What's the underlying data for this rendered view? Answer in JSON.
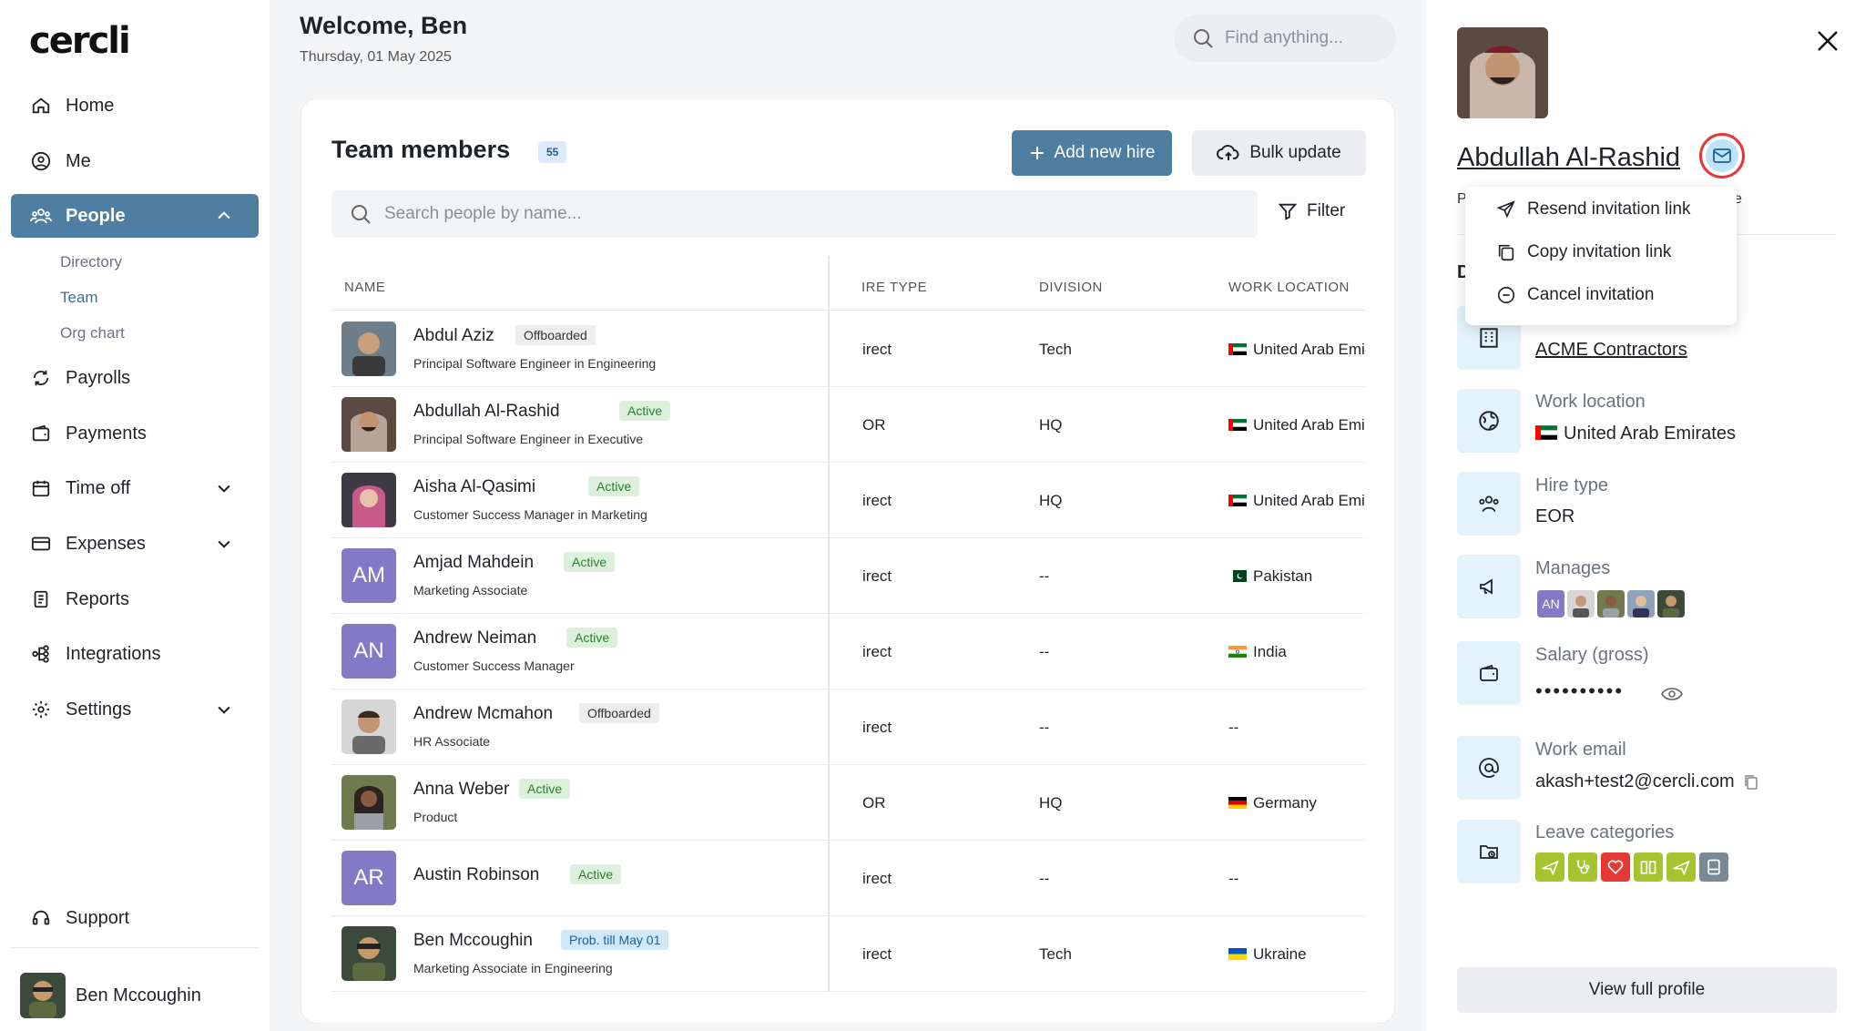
{
  "app": {
    "logo": "cercli"
  },
  "header": {
    "welcome": "Welcome, Ben",
    "date": "Thursday, 01 May 2025",
    "search_placeholder": "Find anything..."
  },
  "sidebar": {
    "items": [
      {
        "label": "Home",
        "icon": "home-icon"
      },
      {
        "label": "Me",
        "icon": "user-circle-icon"
      },
      {
        "label": "People",
        "icon": "people-icon",
        "active": true
      },
      {
        "label": "Payrolls",
        "icon": "payroll-icon"
      },
      {
        "label": "Payments",
        "icon": "wallet-icon"
      },
      {
        "label": "Time off",
        "icon": "calendar-icon"
      },
      {
        "label": "Expenses",
        "icon": "card-icon"
      },
      {
        "label": "Reports",
        "icon": "report-icon"
      },
      {
        "label": "Integrations",
        "icon": "integrations-icon"
      },
      {
        "label": "Settings",
        "icon": "gear-icon"
      }
    ],
    "people_sub": [
      "Directory",
      "Team",
      "Org chart"
    ],
    "support": "Support",
    "user_name": "Ben Mccoughin"
  },
  "team": {
    "title": "Team members",
    "count": "55",
    "add_label": "Add new hire",
    "bulk_label": "Bulk update",
    "search_placeholder": "Search people by name...",
    "filter_label": "Filter",
    "columns": {
      "name": "NAME",
      "hire_type": "IRE TYPE",
      "division": "DIVISION",
      "work_location": "WORK LOCATION"
    },
    "rows": [
      {
        "name": "Abdul Aziz",
        "status": "Offboarded",
        "role": "Principal Software Engineer in Engineering",
        "hire": "irect",
        "division": "Tech",
        "location": "United Arab Emirates"
      },
      {
        "name": "Abdullah Al-Rashid",
        "status": "Active",
        "role": "Principal Software Engineer in Executive",
        "hire": "OR",
        "division": "HQ",
        "location": "United Arab Emirates"
      },
      {
        "name": "Aisha Al-Qasimi",
        "status": "Active",
        "role": "Customer Success Manager in Marketing",
        "hire": "irect",
        "division": "HQ",
        "location": "United Arab Emirates"
      },
      {
        "name": "Amjad Mahdein",
        "status": "Active",
        "role": "Marketing Associate",
        "hire": "irect",
        "division": "--",
        "location": "Pakistan",
        "initials": "AM"
      },
      {
        "name": "Andrew Neiman",
        "status": "Active",
        "role": "Customer Success Manager",
        "hire": "irect",
        "division": "--",
        "location": "India",
        "initials": "AN"
      },
      {
        "name": "Andrew Mcmahon",
        "status": "Offboarded",
        "role": "HR Associate",
        "hire": "irect",
        "division": "--",
        "location": "--"
      },
      {
        "name": "Anna Weber",
        "status": "Active",
        "role": "Product",
        "hire": "OR",
        "division": "HQ",
        "location": "Germany"
      },
      {
        "name": "Austin Robinson",
        "status": "Active",
        "role": "",
        "hire": "irect",
        "division": "--",
        "location": "--",
        "initials": "AR"
      },
      {
        "name": "Ben Mccoughin",
        "status": "Prob. till May 01",
        "role": "Marketing Associate in Engineering",
        "hire": "irect",
        "division": "Tech",
        "location": "Ukraine"
      }
    ]
  },
  "panel": {
    "name": "Abdullah Al-Rashid",
    "tab_frag_left": "P",
    "tab_frag_right": "ve",
    "d_frag": "D",
    "company_value": "ACME Contractors",
    "work_location_label": "Work location",
    "work_location_value": "United Arab Emirates",
    "hire_type_label": "Hire type",
    "hire_type_value": "EOR",
    "manages_label": "Manages",
    "manages_initials": "AN",
    "salary_label": "Salary (gross)",
    "salary_value": "••••••••••",
    "email_label": "Work email",
    "email_value": "akash+test2@cercli.com",
    "leave_label": "Leave categories",
    "view_full": "View full profile"
  },
  "dropdown": {
    "resend": "Resend invitation link",
    "copy": "Copy invitation link",
    "cancel": "Cancel invitation"
  },
  "colors": {
    "primary": "#4f7ea3",
    "active_bg": "#dcf0dc",
    "active_fg": "#2e7d32",
    "initials_bg": "#8479c6",
    "highlight_ring": "#e53935"
  }
}
